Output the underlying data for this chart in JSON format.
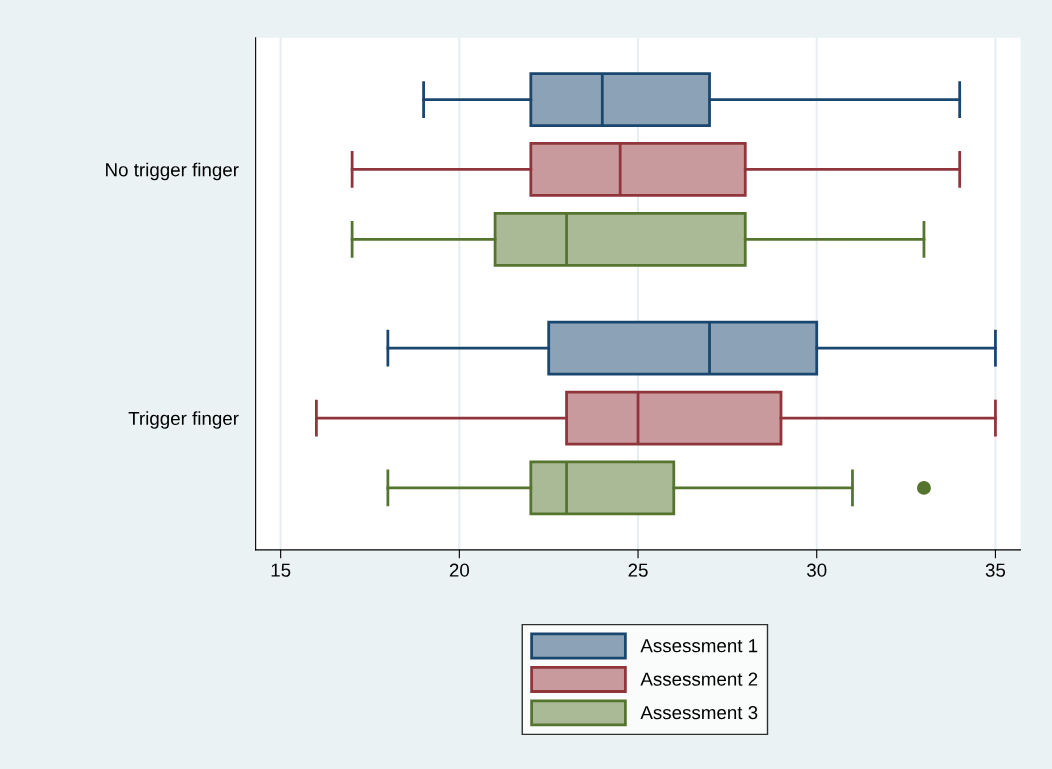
{
  "chart_data": {
    "type": "box",
    "orientation": "horizontal",
    "categories": [
      "No trigger finger",
      "Trigger finger"
    ],
    "series": [
      {
        "name": "Assessment 1",
        "color": "#1a476f",
        "boxes": [
          {
            "low": 19,
            "q1": 22,
            "median": 24,
            "q3": 27,
            "high": 34
          },
          {
            "low": 18,
            "q1": 22.5,
            "median": 27,
            "q3": 30,
            "high": 35
          }
        ]
      },
      {
        "name": "Assessment 2",
        "color": "#90353b",
        "boxes": [
          {
            "low": 17,
            "q1": 22,
            "median": 24.5,
            "q3": 28,
            "high": 34
          },
          {
            "low": 16,
            "q1": 23,
            "median": 25,
            "q3": 29,
            "high": 35
          }
        ]
      },
      {
        "name": "Assessment 3",
        "color": "#55752f",
        "boxes": [
          {
            "low": 17,
            "q1": 21,
            "median": 23,
            "q3": 28,
            "high": 33
          },
          {
            "low": 18,
            "q1": 22,
            "median": 23,
            "q3": 26,
            "high": 31,
            "outliers": [
              33
            ]
          }
        ]
      }
    ],
    "xlim": [
      14.3,
      35.7
    ],
    "xticks": [
      15,
      20,
      25,
      30,
      35
    ],
    "grid": "x",
    "legend": "bottom"
  }
}
